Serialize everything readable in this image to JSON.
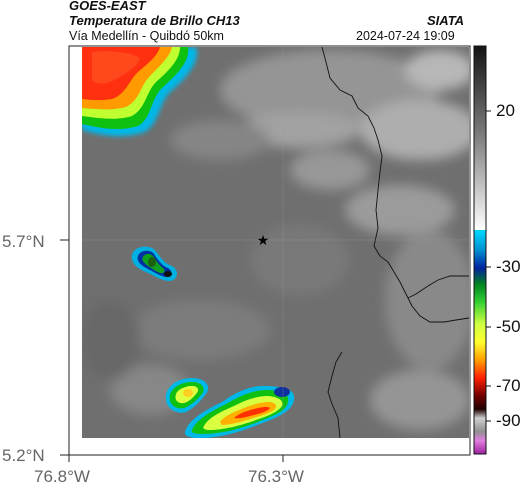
{
  "header": {
    "satellite": "GOES-EAST",
    "product": "Temperatura de Brillo CH13",
    "org": "SIATA",
    "region": "Vía Medellín - Quibdó 50km",
    "datetime": "2024-07-24 19:09"
  },
  "map": {
    "lat_ticks": [
      "5.7°N",
      "5.2°N"
    ],
    "lon_ticks": [
      "76.8°W",
      "76.3°W"
    ],
    "marker_icon": "star-icon"
  },
  "colorbar": {
    "tick_labels": [
      "20",
      "-30",
      "-50",
      "-70",
      "-90"
    ],
    "colors": {
      "warm_top": "#1a1a1a",
      "warm_bottom": "#ffffff",
      "cyan": "#00c8e0",
      "blue": "#0030c0",
      "green": "#10c010",
      "yellow": "#ffff30",
      "orange": "#ff8000",
      "red": "#e01010",
      "dark": "#300000",
      "magenta": "#c040c0"
    }
  }
}
